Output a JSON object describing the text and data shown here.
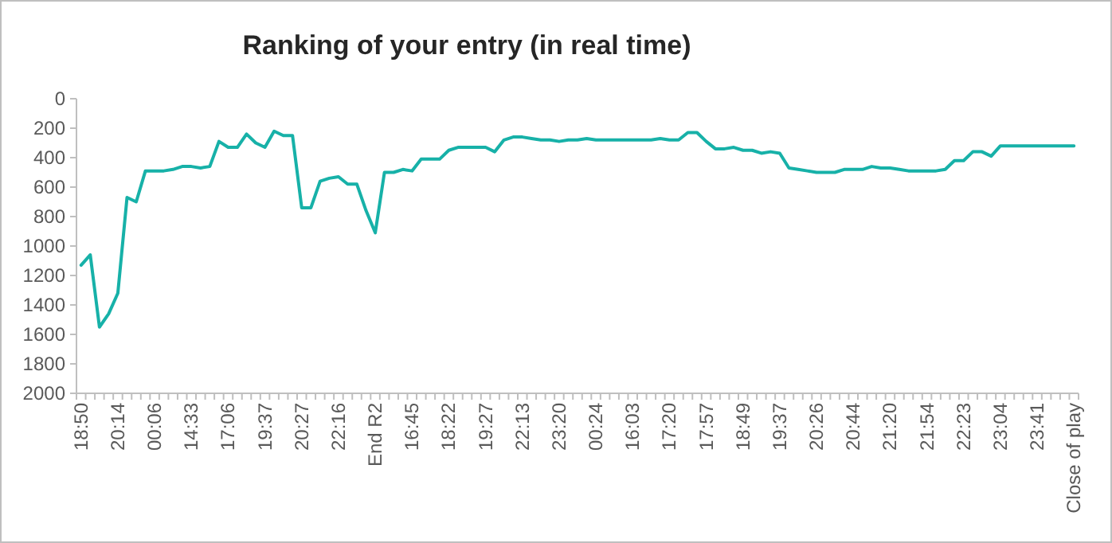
{
  "chart_data": {
    "type": "line",
    "title": "Ranking of your entry (in real time)",
    "categories": [
      "18:50",
      null,
      null,
      null,
      "20:14",
      null,
      null,
      null,
      "00:06",
      null,
      null,
      null,
      "14:33",
      null,
      null,
      null,
      "17:06",
      null,
      null,
      null,
      "19:37",
      null,
      null,
      null,
      "20:27",
      null,
      null,
      null,
      "22:16",
      null,
      null,
      null,
      "End R2",
      null,
      null,
      null,
      "16:45",
      null,
      null,
      null,
      "18:22",
      null,
      null,
      null,
      "19:27",
      null,
      null,
      null,
      "22:13",
      null,
      null,
      null,
      "23:20",
      null,
      null,
      null,
      "00:24",
      null,
      null,
      null,
      "16:03",
      null,
      null,
      null,
      "17:20",
      null,
      null,
      null,
      "17:57",
      null,
      null,
      null,
      "18:49",
      null,
      null,
      null,
      "19:37",
      null,
      null,
      null,
      "20:26",
      null,
      null,
      null,
      "20:44",
      null,
      null,
      null,
      "21:20",
      null,
      null,
      null,
      "21:54",
      null,
      null,
      null,
      "22:23",
      null,
      null,
      null,
      "23:04",
      null,
      null,
      null,
      "23:41",
      null,
      null,
      null,
      "Close of play"
    ],
    "series": [
      {
        "color": "#17b1a8",
        "values": [
          1130,
          1060,
          1550,
          1460,
          1320,
          670,
          700,
          490,
          490,
          490,
          480,
          460,
          460,
          470,
          460,
          290,
          330,
          330,
          240,
          300,
          330,
          220,
          250,
          250,
          740,
          740,
          560,
          540,
          530,
          580,
          580,
          760,
          910,
          500,
          500,
          480,
          490,
          410,
          410,
          410,
          350,
          330,
          330,
          330,
          330,
          360,
          280,
          260,
          260,
          270,
          280,
          280,
          290,
          280,
          280,
          270,
          280,
          280,
          280,
          280,
          280,
          280,
          280,
          270,
          280,
          280,
          230,
          230,
          290,
          340,
          340,
          330,
          350,
          350,
          370,
          360,
          370,
          470,
          480,
          490,
          500,
          500,
          500,
          480,
          480,
          480,
          460,
          470,
          470,
          480,
          490,
          490,
          490,
          490,
          480,
          420,
          420,
          360,
          360,
          390,
          320,
          320,
          320,
          320,
          320,
          320,
          320,
          320,
          320
        ]
      }
    ],
    "ylim": [
      2000,
      0
    ],
    "yticks": [
      0,
      200,
      400,
      600,
      800,
      1000,
      1200,
      1400,
      1600,
      1800,
      2000
    ],
    "grid": false,
    "marker": "none",
    "line_style": "solid"
  }
}
